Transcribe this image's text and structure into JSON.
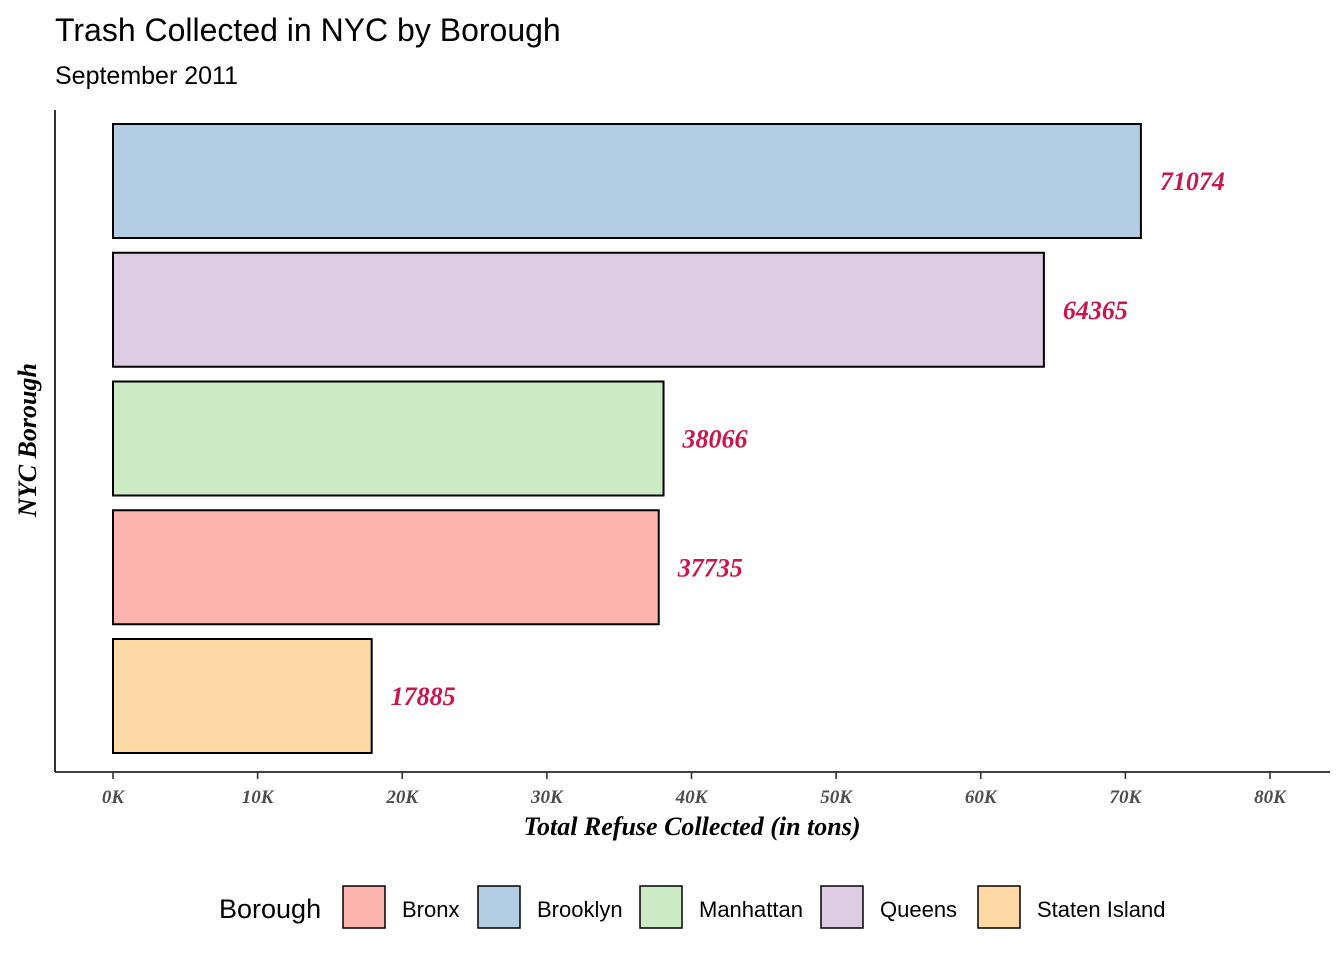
{
  "chart_data": {
    "type": "bar",
    "orientation": "horizontal",
    "title": "Trash Collected in NYC by Borough",
    "subtitle": "September 2011",
    "xlabel": "Total Refuse Collected (in tons)",
    "ylabel": "NYC Borough",
    "xlim": [
      0,
      80000
    ],
    "x_ticks": [
      0,
      10000,
      20000,
      30000,
      40000,
      50000,
      60000,
      70000,
      80000
    ],
    "x_tick_labels": [
      "0K",
      "10K",
      "20K",
      "30K",
      "40K",
      "50K",
      "60K",
      "70K",
      "80K"
    ],
    "categories": [
      "Brooklyn",
      "Queens",
      "Manhattan",
      "Bronx",
      "Staten Island"
    ],
    "values": [
      71074,
      64365,
      38066,
      37735,
      17885
    ],
    "data_labels": [
      "71074",
      "64365",
      "38066",
      "37735",
      "17885"
    ],
    "colors": [
      "#B3CDE3",
      "#DECBE4",
      "#CCEBC5",
      "#FBB4AE",
      "#FED9A6"
    ],
    "bar_outline_color": "#000000",
    "data_label_color": "#C8174A",
    "grid": false,
    "legend": {
      "title": "Borough",
      "position": "bottom",
      "entries": [
        {
          "label": "Bronx",
          "color": "#FBB4AE"
        },
        {
          "label": "Brooklyn",
          "color": "#B3CDE3"
        },
        {
          "label": "Manhattan",
          "color": "#CCEBC5"
        },
        {
          "label": "Queens",
          "color": "#DECBE4"
        },
        {
          "label": "Staten Island",
          "color": "#FED9A6"
        }
      ]
    }
  }
}
